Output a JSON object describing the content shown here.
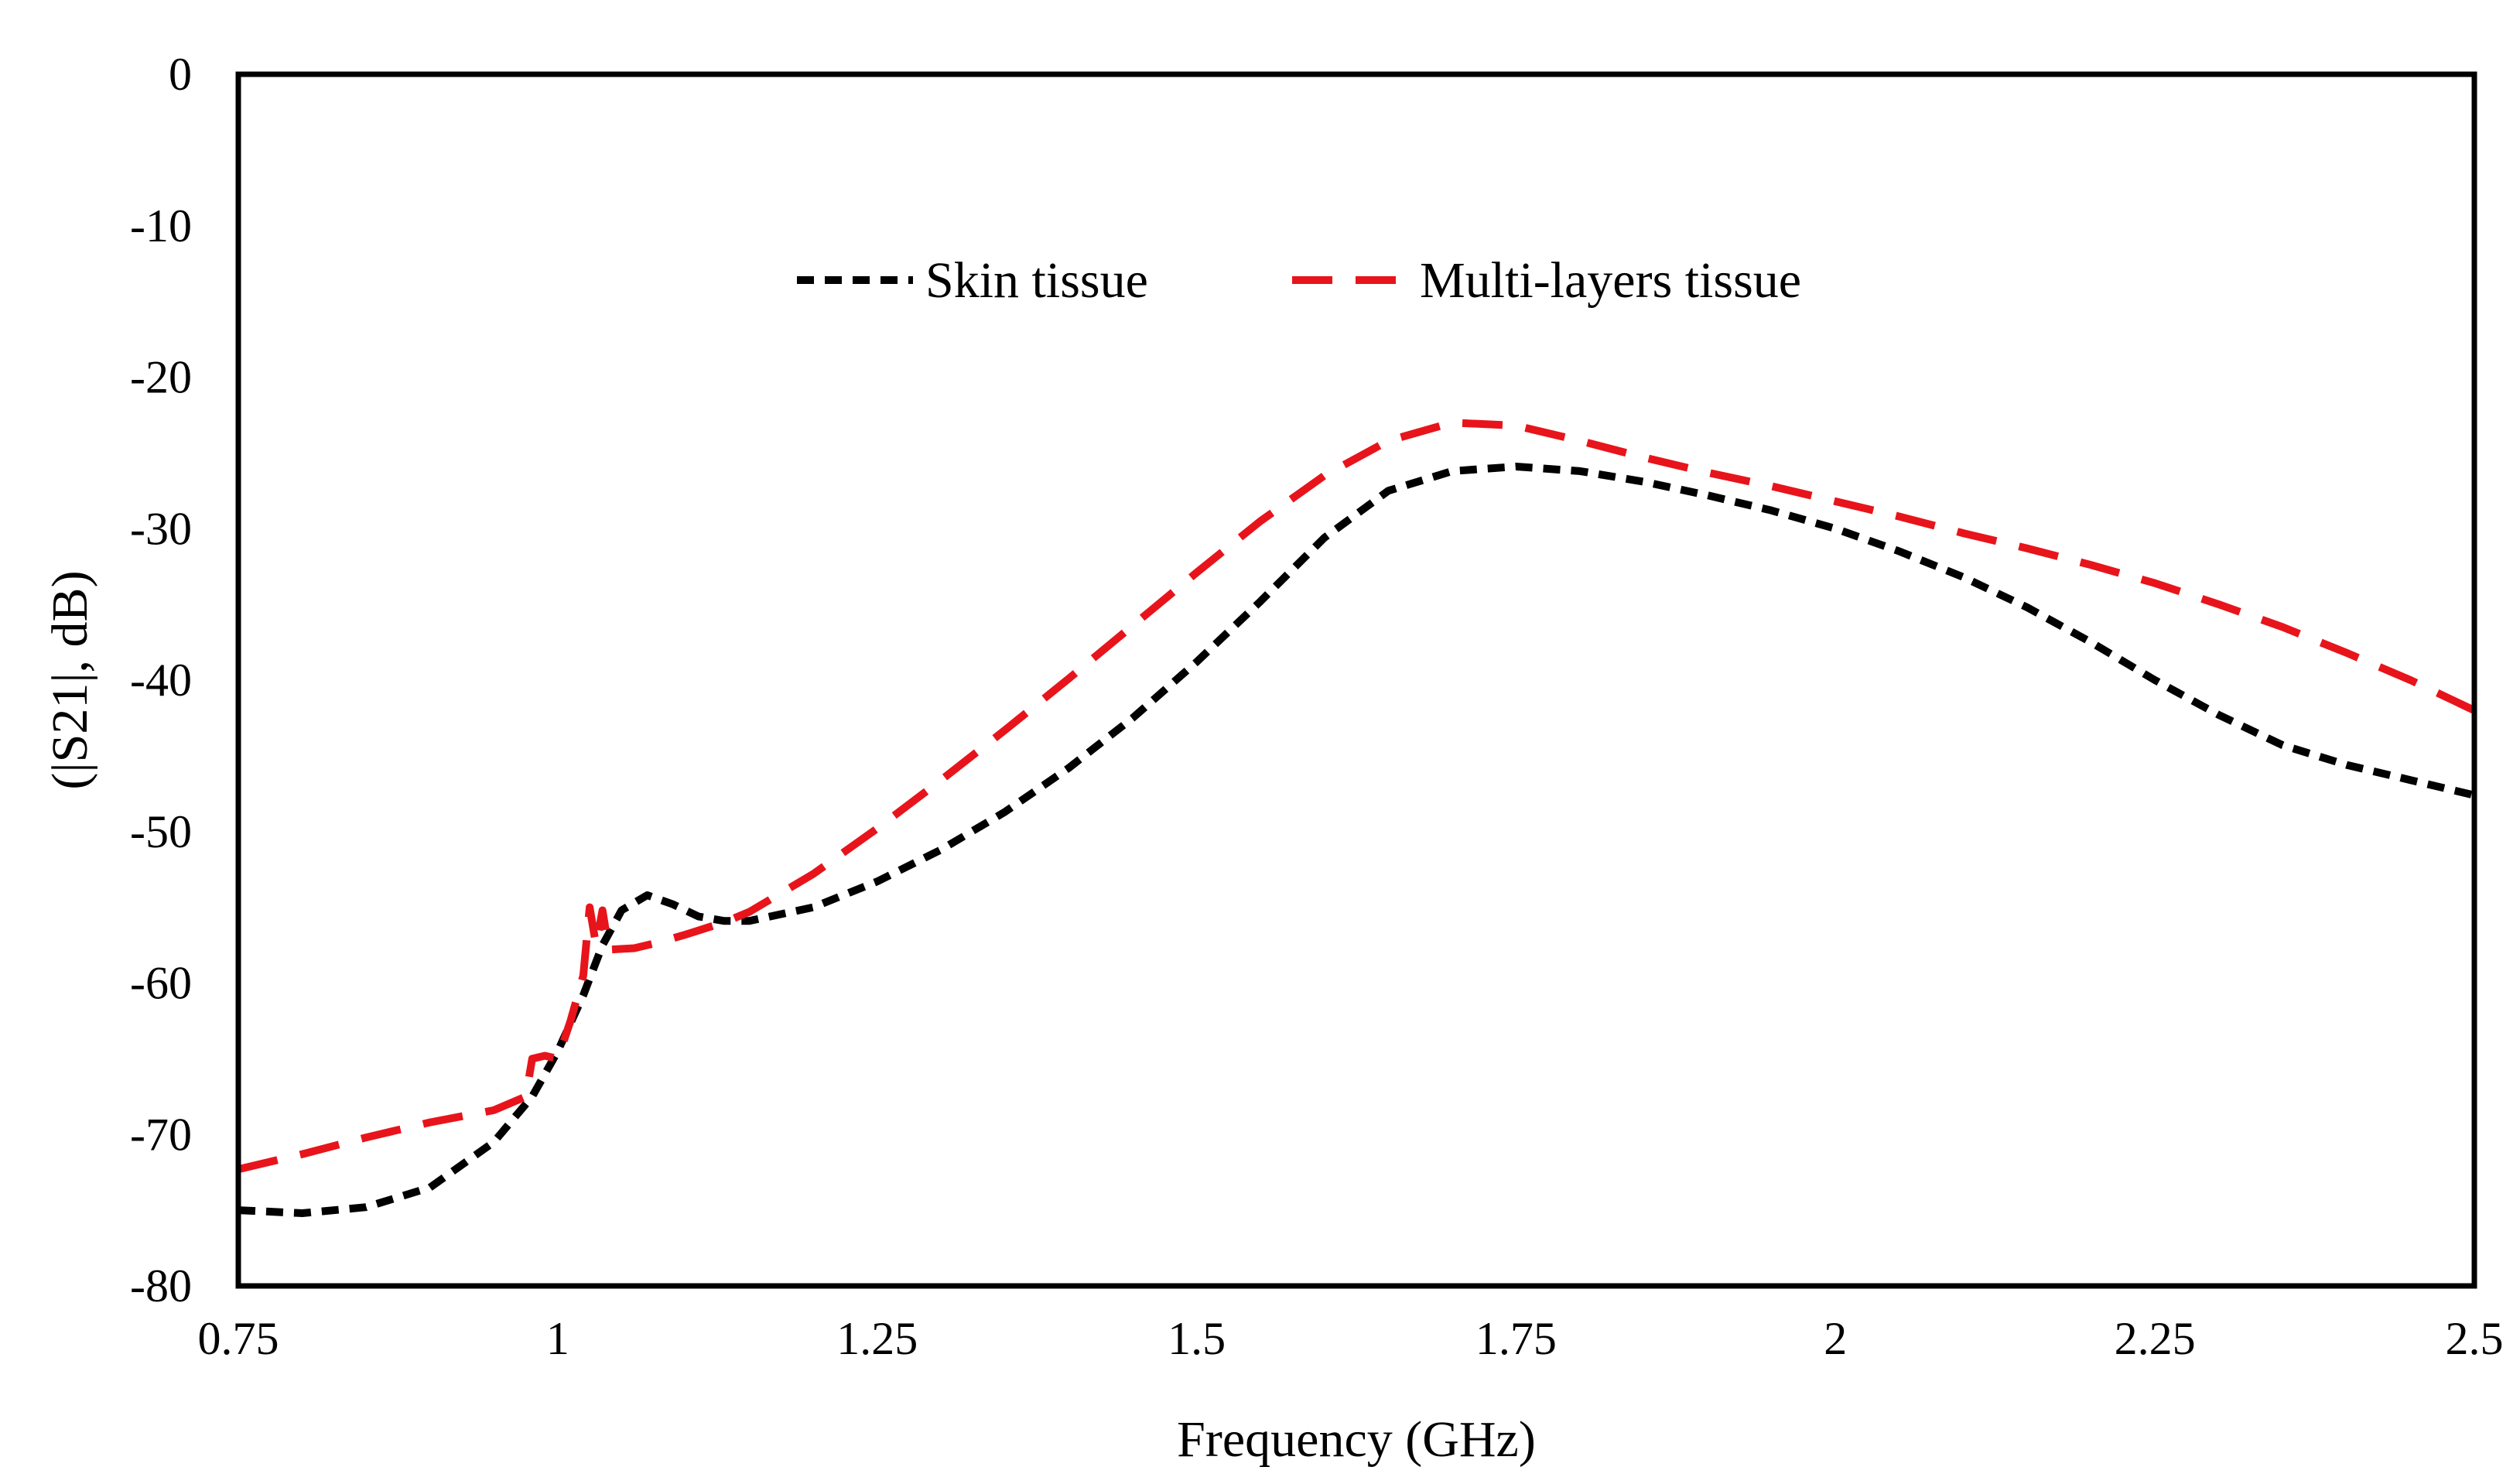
{
  "chart_data": {
    "type": "line",
    "title": "",
    "xlabel": "Frequency (GHz)",
    "ylabel": "(|S21|, dB)",
    "xlim": [
      0.75,
      2.5
    ],
    "ylim": [
      -80,
      0
    ],
    "xticks": [
      0.75,
      1,
      1.25,
      1.5,
      1.75,
      2,
      2.25,
      2.5
    ],
    "xtick_labels": [
      "0.75",
      "1",
      "1.25",
      "1.5",
      "1.75",
      "2",
      "2.25",
      "2.5"
    ],
    "yticks": [
      0,
      -10,
      -20,
      -30,
      -40,
      -50,
      -60,
      -70,
      -80
    ],
    "ytick_labels": [
      "0",
      "-10",
      "-20",
      "-30",
      "-40",
      "-50",
      "-60",
      "-70",
      "-80"
    ],
    "grid": false,
    "legend_position": "top-center",
    "series": [
      {
        "name": "Skin tissue",
        "color": "#000000",
        "style": "short-dash",
        "x": [
          0.75,
          0.8,
          0.85,
          0.9,
          0.95,
          0.98,
          1.0,
          1.02,
          1.035,
          1.05,
          1.07,
          1.09,
          1.11,
          1.13,
          1.15,
          1.2,
          1.25,
          1.3,
          1.35,
          1.4,
          1.45,
          1.5,
          1.55,
          1.6,
          1.65,
          1.7,
          1.75,
          1.8,
          1.85,
          1.9,
          1.95,
          2.0,
          2.05,
          2.1,
          2.15,
          2.2,
          2.25,
          2.3,
          2.35,
          2.4,
          2.45,
          2.5
        ],
        "y": [
          -75,
          -75.2,
          -74.8,
          -73.5,
          -70.5,
          -67.5,
          -64.5,
          -60.8,
          -57.5,
          -55.2,
          -54.2,
          -54.8,
          -55.6,
          -55.9,
          -55.9,
          -55.0,
          -53.3,
          -51.2,
          -48.7,
          -45.8,
          -42.5,
          -38.8,
          -34.8,
          -30.6,
          -27.5,
          -26.2,
          -25.9,
          -26.2,
          -26.9,
          -27.8,
          -28.8,
          -30.0,
          -31.5,
          -33.2,
          -35.2,
          -37.5,
          -40.0,
          -42.3,
          -44.3,
          -45.6,
          -46.6,
          -47.6
        ]
      },
      {
        "name": "Multi-layers tissue",
        "color": "#e8141b",
        "style": "long-dash",
        "x": [
          0.75,
          0.8,
          0.85,
          0.9,
          0.95,
          0.975,
          0.98,
          0.99,
          1.0,
          1.01,
          1.02,
          1.025,
          1.03,
          1.035,
          1.04,
          1.06,
          1.08,
          1.1,
          1.13,
          1.15,
          1.2,
          1.25,
          1.3,
          1.35,
          1.4,
          1.45,
          1.5,
          1.55,
          1.6,
          1.65,
          1.7,
          1.75,
          1.8,
          1.85,
          1.9,
          1.95,
          2.0,
          2.05,
          2.1,
          2.15,
          2.2,
          2.25,
          2.3,
          2.35,
          2.4,
          2.45,
          2.5
        ],
        "y": [
          -72.3,
          -71.3,
          -70.2,
          -69.2,
          -68.4,
          -67.5,
          -65.0,
          -64.8,
          -65.0,
          -62.5,
          -59.5,
          -55.0,
          -57.5,
          -55.2,
          -57.8,
          -57.7,
          -57.3,
          -56.8,
          -56.0,
          -55.3,
          -52.8,
          -49.8,
          -46.6,
          -43.3,
          -39.9,
          -36.4,
          -32.9,
          -29.5,
          -26.5,
          -24.2,
          -23.0,
          -23.2,
          -24.2,
          -25.3,
          -26.3,
          -27.2,
          -28.2,
          -29.2,
          -30.3,
          -31.3,
          -32.4,
          -33.6,
          -35.0,
          -36.5,
          -38.2,
          -40.0,
          -42.0
        ]
      }
    ]
  }
}
